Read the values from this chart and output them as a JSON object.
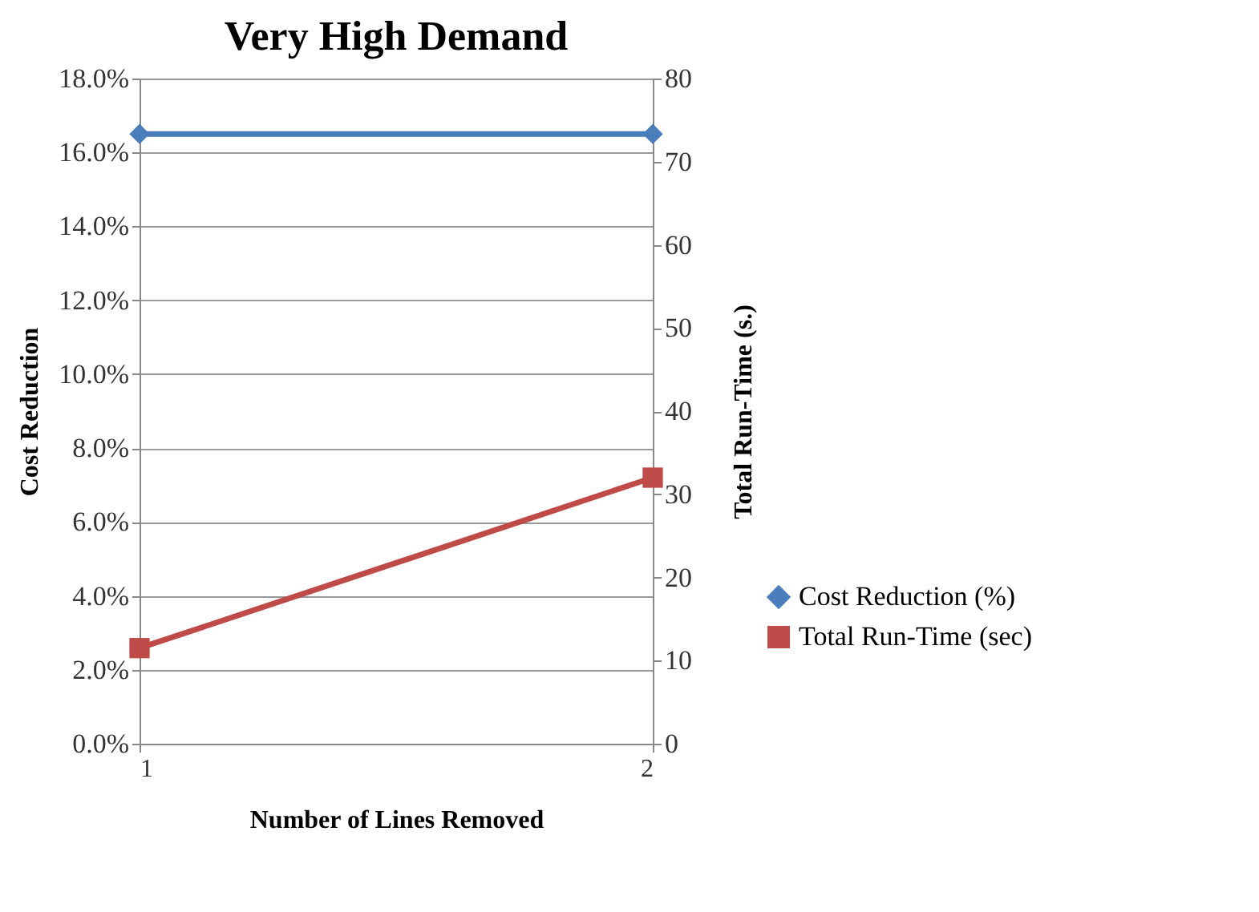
{
  "chart_data": {
    "type": "line",
    "title": "Very High Demand",
    "xlabel": "Number  of Lines Removed",
    "ylabel": "Cost Reduction",
    "y2label": "Total  Run-Time  (s.)",
    "x": [
      1,
      2
    ],
    "xlim": [
      1,
      2
    ],
    "xticks": [
      1,
      2
    ],
    "ylim": [
      0,
      18
    ],
    "yticks": [
      {
        "value": 0,
        "label": "0.0%"
      },
      {
        "value": 2,
        "label": "2.0%"
      },
      {
        "value": 4,
        "label": "4.0%"
      },
      {
        "value": 6,
        "label": "6.0%"
      },
      {
        "value": 8,
        "label": "8.0%"
      },
      {
        "value": 10,
        "label": "10.0%"
      },
      {
        "value": 12,
        "label": "12.0%"
      },
      {
        "value": 14,
        "label": "14.0%"
      },
      {
        "value": 16,
        "label": "16.0%"
      },
      {
        "value": 18,
        "label": "18.0%"
      }
    ],
    "y2lim": [
      0,
      80
    ],
    "y2ticks": [
      0,
      10,
      20,
      30,
      40,
      50,
      60,
      70,
      80
    ],
    "series": [
      {
        "name": "Cost Reduction (%)",
        "color": "#4a7ebb",
        "values": [
          16.5,
          16.5
        ],
        "marker": "diamond"
      },
      {
        "name": "Total Run-Time (sec)",
        "color": "#be4b48",
        "values": [
          11.5,
          32
        ],
        "marker": "square",
        "axis": "y2"
      }
    ],
    "grid": "y",
    "legend": "right",
    "line_style": "solid"
  }
}
